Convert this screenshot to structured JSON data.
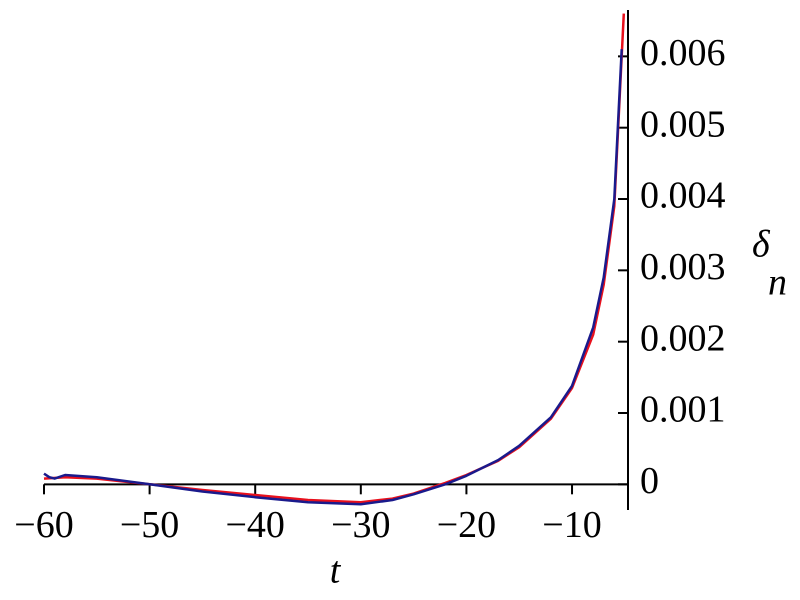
{
  "chart_data": {
    "type": "line",
    "xlabel": "t",
    "ylabel": "δ",
    "ylabel_sub": "n",
    "xlim": [
      -60,
      -4.7
    ],
    "ylim": [
      -0.00036,
      0.00665
    ],
    "xticks": [
      {
        "value": -60,
        "label": "−60"
      },
      {
        "value": -50,
        "label": "−50"
      },
      {
        "value": -40,
        "label": "−40"
      },
      {
        "value": -30,
        "label": "−30"
      },
      {
        "value": -20,
        "label": "−20"
      },
      {
        "value": -10,
        "label": "−10"
      }
    ],
    "yticks": [
      0,
      0.001,
      0.002,
      0.003,
      0.004,
      0.005,
      0.006
    ],
    "series": [
      {
        "color": "#e8101c",
        "x": [
          -60,
          -58,
          -55,
          -50,
          -45,
          -40,
          -35,
          -30,
          -27,
          -25,
          -22,
          -20,
          -17,
          -15,
          -12,
          -10,
          -8,
          -7,
          -6,
          -5.1
        ],
        "values": [
          8e-05,
          0.0001,
          8e-05,
          0.0,
          -8e-05,
          -0.00015,
          -0.00022,
          -0.00025,
          -0.0002,
          -0.00013,
          2e-05,
          0.00013,
          0.00033,
          0.00052,
          0.00092,
          0.00135,
          0.0021,
          0.0028,
          0.0039,
          0.0066
        ]
      },
      {
        "color": "#1a1a8c",
        "x": [
          -60,
          -59.5,
          -59,
          -58,
          -55,
          -50,
          -45,
          -40,
          -35,
          -30,
          -27,
          -25,
          -22,
          -20,
          -17,
          -15,
          -12,
          -10,
          -8,
          -7,
          -6,
          -5.3
        ],
        "values": [
          0.00015,
          0.0001,
          8e-05,
          0.00013,
          0.0001,
          0.0,
          -0.0001,
          -0.00018,
          -0.00025,
          -0.00028,
          -0.00022,
          -0.00014,
          0.0,
          0.00012,
          0.00034,
          0.00054,
          0.00094,
          0.00138,
          0.0022,
          0.0029,
          0.004,
          0.0061
        ]
      }
    ]
  }
}
